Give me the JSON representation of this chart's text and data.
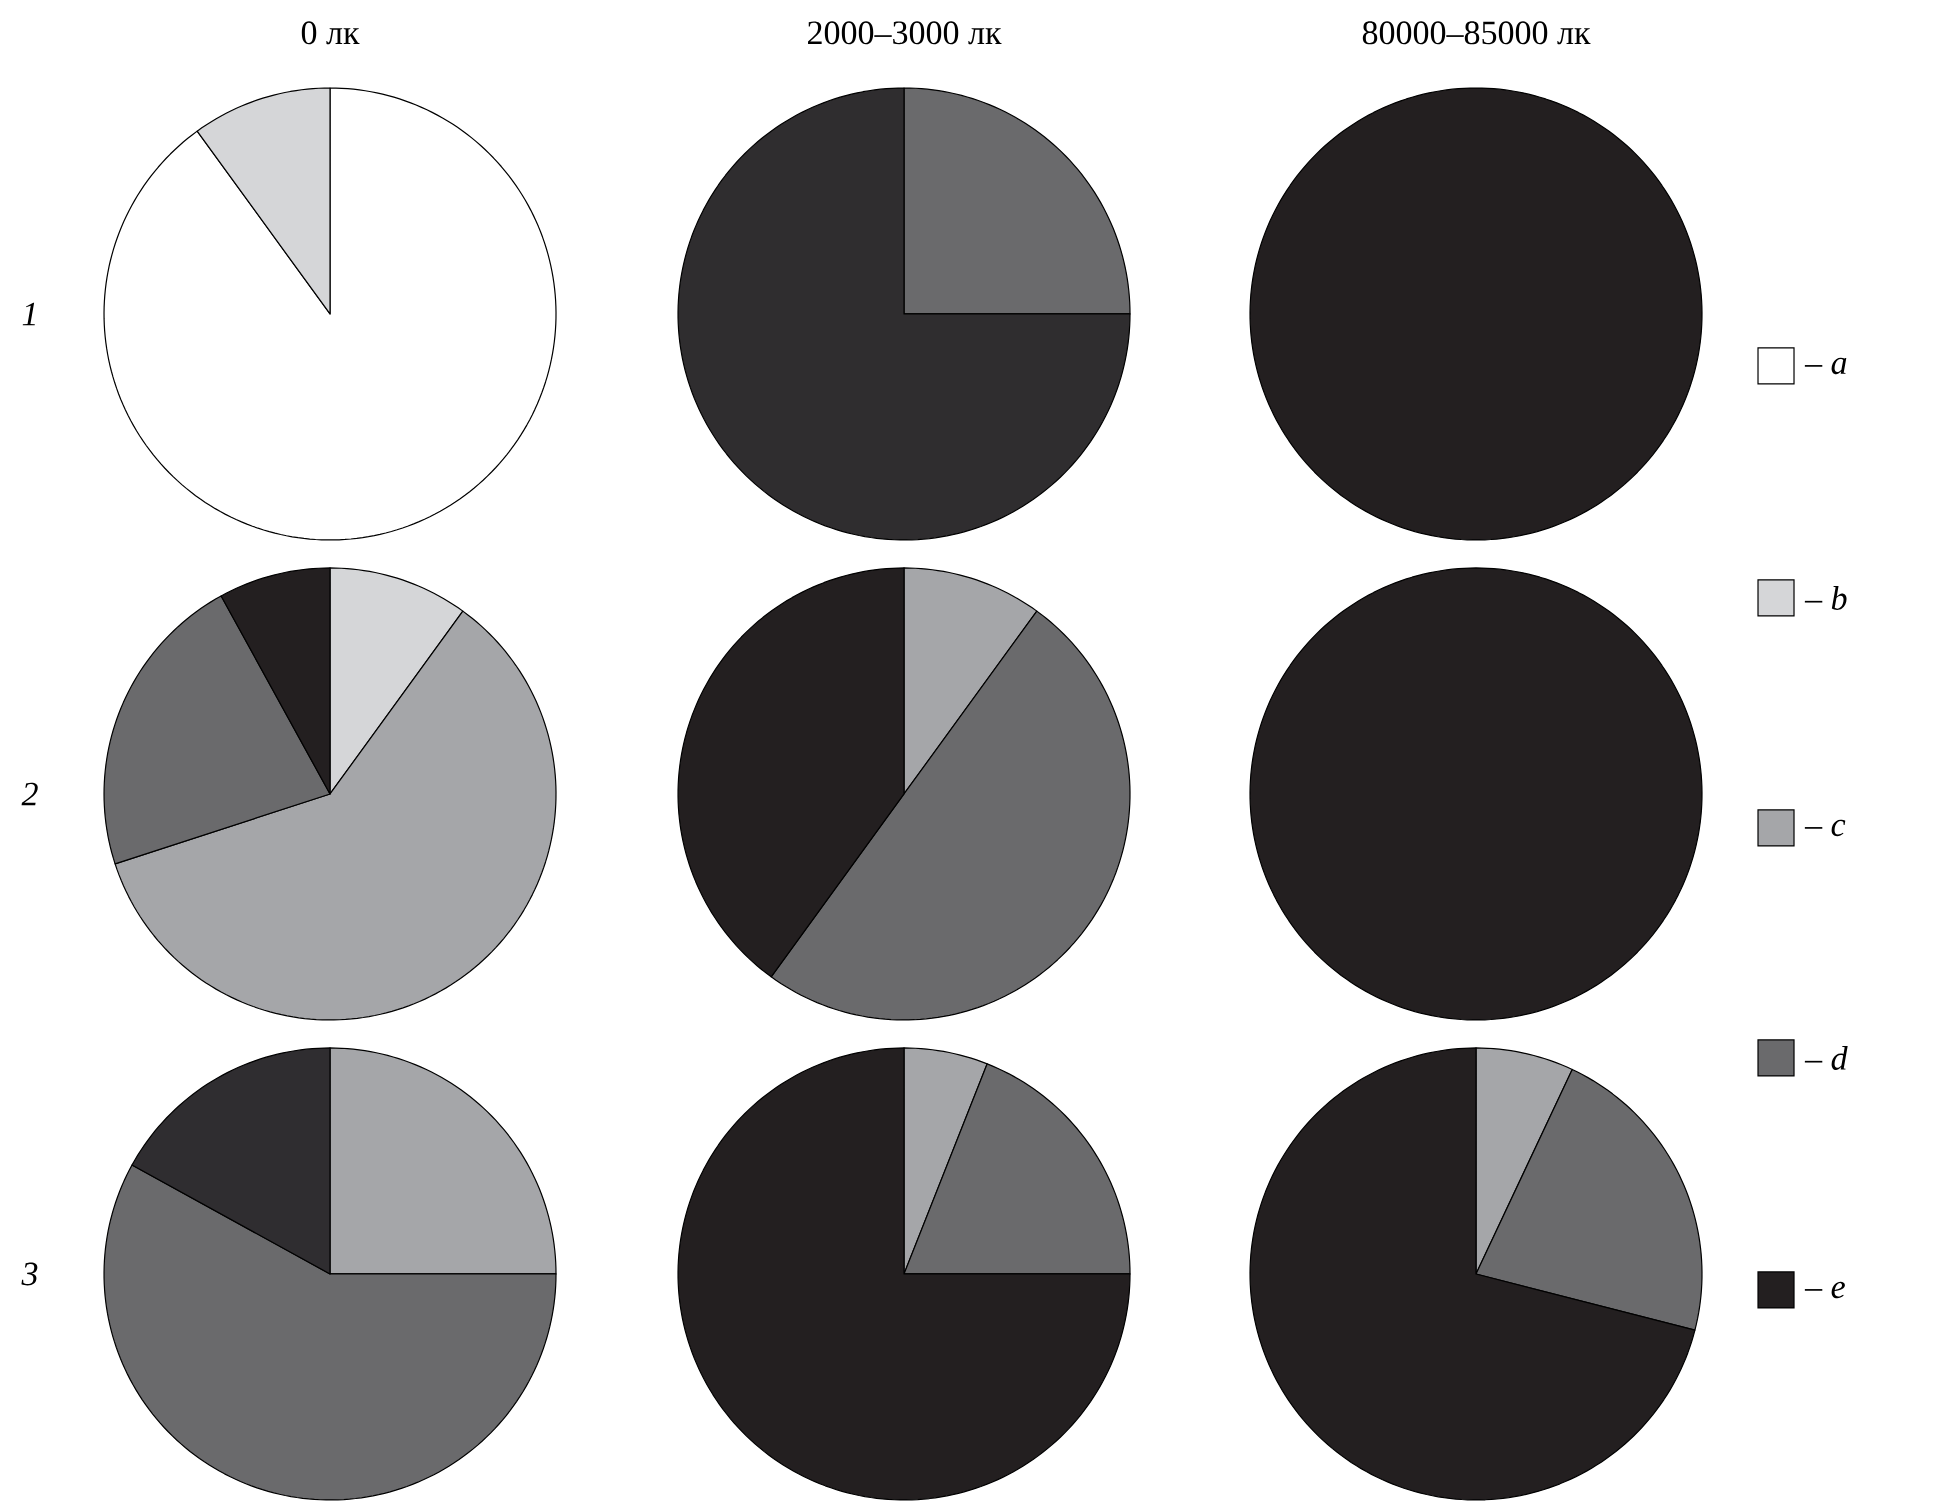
{
  "chart_data": [
    {
      "type": "pie",
      "title": "0 лк",
      "ylabel": "1",
      "categories": [
        null,
        null
      ],
      "values": [
        90,
        10
      ],
      "colors": [
        "#ffffff",
        "#d5d6d8"
      ]
    },
    {
      "type": "pie",
      "title": "2000–3000 лк",
      "categories": [
        null,
        null
      ],
      "values": [
        25,
        75
      ],
      "colors": [
        "#6a6a6c",
        "#2f2d2f"
      ]
    },
    {
      "type": "pie",
      "title": "80000–85000 лк",
      "categories": [
        "– *a*",
        "– *b*",
        "– *c*",
        "– *d*",
        "– *e*"
      ],
      "values": [
        0,
        0,
        0,
        0,
        100
      ],
      "colors": [
        "#ffffff",
        "#d5d6d8",
        "#a5a6a9",
        "#6a6a6c",
        "#231f20"
      ],
      "legend": "right"
    },
    {
      "type": "pie",
      "ylabel": "2",
      "categories": [
        null,
        null,
        null,
        null
      ],
      "values": [
        10,
        60,
        22,
        8
      ],
      "colors": [
        "#d5d6d8",
        "#a5a6a9",
        "#6a6a6c",
        "#231f20"
      ]
    },
    {
      "type": "pie",
      "categories": [
        null,
        null,
        null
      ],
      "values": [
        10,
        50,
        40
      ],
      "colors": [
        "#a5a6a9",
        "#6a6a6c",
        "#231f20"
      ]
    },
    {
      "type": "pie",
      "categories": [
        null
      ],
      "values": [
        100
      ],
      "colors": [
        "#231f20"
      ]
    },
    {
      "type": "pie",
      "ylabel": "3",
      "categories": [
        null,
        null,
        null
      ],
      "values": [
        25,
        58,
        17
      ],
      "colors": [
        "#a5a6a9",
        "#6a6a6c",
        "#2f2d30"
      ]
    },
    {
      "type": "pie",
      "categories": [
        null,
        null,
        null
      ],
      "values": [
        6,
        19,
        75
      ],
      "colors": [
        "#a5a6a9",
        "#6a6a6c",
        "#231f20"
      ]
    },
    {
      "type": "pie",
      "categories": [
        null,
        null,
        null
      ],
      "values": [
        7,
        22,
        71
      ],
      "colors": [
        "#a5a6a9",
        "#6a6a6c",
        "#231f20"
      ]
    }
  ]
}
